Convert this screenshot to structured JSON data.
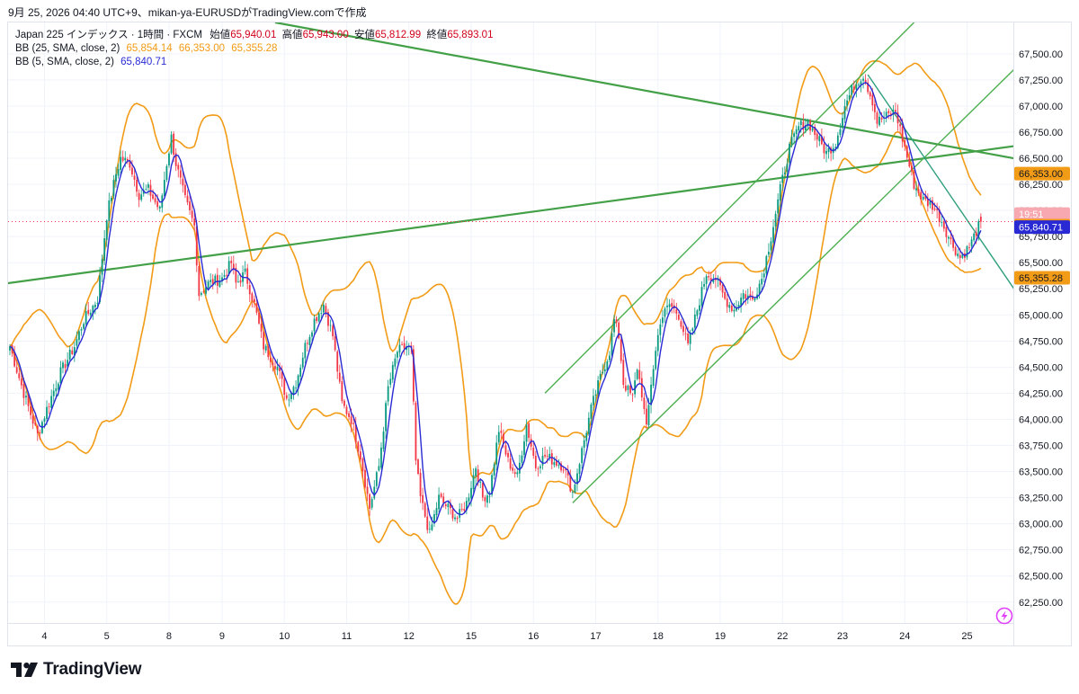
{
  "caption": "9月 25, 2026 04:40 UTC+9、mikan-ya-EURUSDがTradingView.comで作成",
  "brand": "TradingView",
  "colors": {
    "up": "#089981",
    "down": "#f23645",
    "bb25": "#f29b16",
    "bb5": "#2a2ad4",
    "trend": "#43a047",
    "grid": "#f0f3fa"
  },
  "legend": {
    "symbol": "Japan 225 インデックス · 1時間 · FXCM",
    "open_label": "始値",
    "open": "65,940.01",
    "high_label": "高値",
    "high": "65,943.00",
    "low_label": "安値",
    "low": "65,812.99",
    "close_label": "終値",
    "close": "65,893.01",
    "bb25_label": "BB (25, SMA, close, 2)",
    "bb25_values": [
      "65,854.14",
      "66,353.00",
      "65,355.28"
    ],
    "bb5_label": "BB (5, SMA, close, 2)",
    "bb5_value": "65,840.71"
  },
  "chart_data": {
    "type": "candlestick",
    "title": "",
    "y_ticks": [
      "67,500.00",
      "67,250.00",
      "67,000.00",
      "66,750.00",
      "66,500.00",
      "66,250.00",
      "66,000.00",
      "65,750.00",
      "65,500.00",
      "65,250.00",
      "65,000.00",
      "64,750.00",
      "64,500.00",
      "64,250.00",
      "64,000.00",
      "63,750.00",
      "63,500.00",
      "63,250.00",
      "63,000.00",
      "62,750.00",
      "62,500.00",
      "62,250.00"
    ],
    "y_tick_values": [
      67500,
      67250,
      67000,
      66750,
      66500,
      66250,
      66000,
      65750,
      65500,
      65250,
      65000,
      64750,
      64500,
      64250,
      64000,
      63750,
      63500,
      63250,
      63000,
      62750,
      62500,
      62250
    ],
    "ylim": [
      62050,
      67800
    ],
    "x_ticks": [
      "4",
      "5",
      "8",
      "9",
      "10",
      "11",
      "12",
      "15",
      "16",
      "17",
      "18",
      "19",
      "22",
      "23",
      "24",
      "25"
    ],
    "x_tick_index": [
      15,
      42,
      69,
      92,
      119,
      146,
      173,
      200,
      227,
      254,
      281,
      308,
      335,
      361,
      388,
      415
    ],
    "bar_count": 422,
    "price_tags": [
      {
        "label": "66,353.00",
        "value": 66353.0,
        "color": "#f29b16",
        "text_color": "#131722"
      },
      {
        "label": "19:51",
        "value": 65965.0,
        "color": "#f7a8b0",
        "text_color": "#ffffff"
      },
      {
        "label": "65,854.14",
        "value": 65854.14,
        "color": "#f29b16",
        "text_color": "#131722"
      },
      {
        "label": "65,840.71",
        "value": 65840.71,
        "color": "#2a2ad4",
        "text_color": "#ffffff"
      },
      {
        "label": "65,355.28",
        "value": 65355.28,
        "color": "#f29b16",
        "text_color": "#131722"
      }
    ],
    "last_price": 65893.01,
    "anchors": [
      [
        0,
        64700
      ],
      [
        6,
        64250
      ],
      [
        12,
        63850
      ],
      [
        16,
        64100
      ],
      [
        22,
        64450
      ],
      [
        28,
        64700
      ],
      [
        32,
        64950
      ],
      [
        38,
        65150
      ],
      [
        42,
        65950
      ],
      [
        46,
        66350
      ],
      [
        48,
        66500
      ],
      [
        52,
        66450
      ],
      [
        56,
        66150
      ],
      [
        60,
        66200
      ],
      [
        65,
        66000
      ],
      [
        68,
        66450
      ],
      [
        70,
        66700
      ],
      [
        72,
        66450
      ],
      [
        76,
        66100
      ],
      [
        80,
        65850
      ],
      [
        82,
        65200
      ],
      [
        86,
        65300
      ],
      [
        92,
        65350
      ],
      [
        96,
        65500
      ],
      [
        98,
        65300
      ],
      [
        102,
        65400
      ],
      [
        106,
        65100
      ],
      [
        110,
        64700
      ],
      [
        116,
        64500
      ],
      [
        120,
        64200
      ],
      [
        124,
        64350
      ],
      [
        128,
        64700
      ],
      [
        132,
        64950
      ],
      [
        136,
        65100
      ],
      [
        140,
        64800
      ],
      [
        144,
        64150
      ],
      [
        148,
        64000
      ],
      [
        152,
        63650
      ],
      [
        156,
        63150
      ],
      [
        160,
        63550
      ],
      [
        164,
        64300
      ],
      [
        168,
        64650
      ],
      [
        172,
        64700
      ],
      [
        174,
        64650
      ],
      [
        176,
        63600
      ],
      [
        178,
        63250
      ],
      [
        182,
        62900
      ],
      [
        186,
        63250
      ],
      [
        190,
        63150
      ],
      [
        194,
        63050
      ],
      [
        198,
        63200
      ],
      [
        202,
        63550
      ],
      [
        205,
        63250
      ],
      [
        208,
        63300
      ],
      [
        212,
        63900
      ],
      [
        216,
        63600
      ],
      [
        220,
        63450
      ],
      [
        224,
        63950
      ],
      [
        228,
        63550
      ],
      [
        232,
        63650
      ],
      [
        236,
        63600
      ],
      [
        240,
        63550
      ],
      [
        244,
        63300
      ],
      [
        248,
        63700
      ],
      [
        252,
        64100
      ],
      [
        256,
        64400
      ],
      [
        260,
        64650
      ],
      [
        262,
        64950
      ],
      [
        264,
        64800
      ],
      [
        266,
        64350
      ],
      [
        270,
        64200
      ],
      [
        272,
        64500
      ],
      [
        274,
        64250
      ],
      [
        276,
        63900
      ],
      [
        278,
        64350
      ],
      [
        282,
        64950
      ],
      [
        286,
        65100
      ],
      [
        290,
        65000
      ],
      [
        294,
        64700
      ],
      [
        298,
        65050
      ],
      [
        302,
        65400
      ],
      [
        306,
        65350
      ],
      [
        310,
        65150
      ],
      [
        314,
        65050
      ],
      [
        318,
        65200
      ],
      [
        322,
        65150
      ],
      [
        326,
        65350
      ],
      [
        330,
        65750
      ],
      [
        334,
        66200
      ],
      [
        338,
        66600
      ],
      [
        342,
        66800
      ],
      [
        346,
        66850
      ],
      [
        350,
        66700
      ],
      [
        354,
        66550
      ],
      [
        358,
        66650
      ],
      [
        362,
        67000
      ],
      [
        366,
        67200
      ],
      [
        370,
        67300
      ],
      [
        374,
        67050
      ],
      [
        376,
        66850
      ],
      [
        380,
        66900
      ],
      [
        384,
        66950
      ],
      [
        388,
        66600
      ],
      [
        392,
        66250
      ],
      [
        396,
        66100
      ],
      [
        400,
        66050
      ],
      [
        404,
        65900
      ],
      [
        408,
        65700
      ],
      [
        412,
        65550
      ],
      [
        416,
        65650
      ],
      [
        419,
        65800
      ],
      [
        421,
        65893
      ]
    ],
    "series": [
      {
        "name": "BB (25, SMA, close, 2)"
      },
      {
        "name": "BB (5, SMA, close, 2)"
      }
    ],
    "trendlines": [
      {
        "from": [
          -2,
          65300
        ],
        "to": [
          440,
          66630
        ]
      },
      {
        "from": [
          115,
          67800
        ],
        "to": [
          440,
          66480
        ]
      },
      {
        "from": [
          232,
          64250
        ],
        "to": [
          392,
          67800
        ]
      },
      {
        "from": [
          244,
          63200
        ],
        "to": [
          440,
          67450
        ]
      },
      {
        "from": [
          372,
          67300
        ],
        "to": [
          440,
          65100
        ]
      }
    ]
  }
}
